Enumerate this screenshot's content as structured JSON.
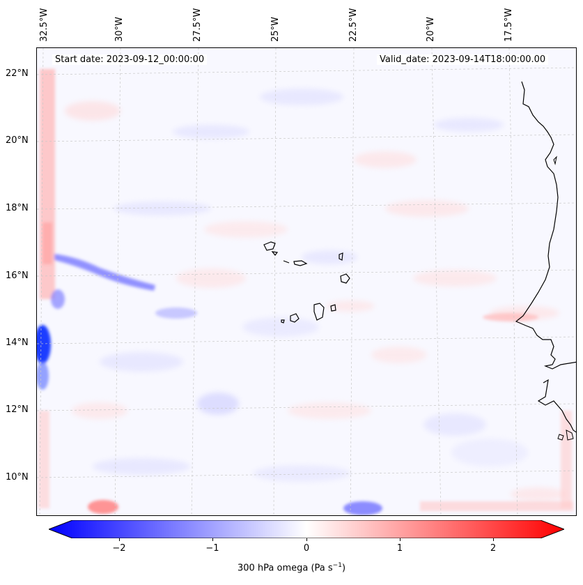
{
  "annotations": {
    "start_date": "Start date: 2023-09-12_00:00:00",
    "valid_date": "Valid_date: 2023-09-14T18:00:00.00"
  },
  "longitude_labels": [
    "32.5°W",
    "30°W",
    "27.5°W",
    "25°W",
    "22.5°W",
    "20°W",
    "17.5°W"
  ],
  "latitude_labels": [
    "22°N",
    "20°N",
    "18°N",
    "16°N",
    "14°N",
    "12°N",
    "10°N"
  ],
  "colorbar": {
    "label_prefix": "300 hPa omega (Pa s",
    "label_exp": "−1",
    "label_suffix": ")",
    "ticks": [
      "−2",
      "−1",
      "0",
      "1",
      "2"
    ],
    "range": [
      -2.75,
      2.75
    ],
    "colormap": "bwr",
    "colors": {
      "negative": "#0000ff",
      "neutral": "#ffffff",
      "positive": "#ff0000"
    }
  },
  "map": {
    "features": [
      "coastline",
      "gridlines",
      "cape-verde-islands",
      "west-africa-coast"
    ],
    "projection": "lat-lon"
  }
}
